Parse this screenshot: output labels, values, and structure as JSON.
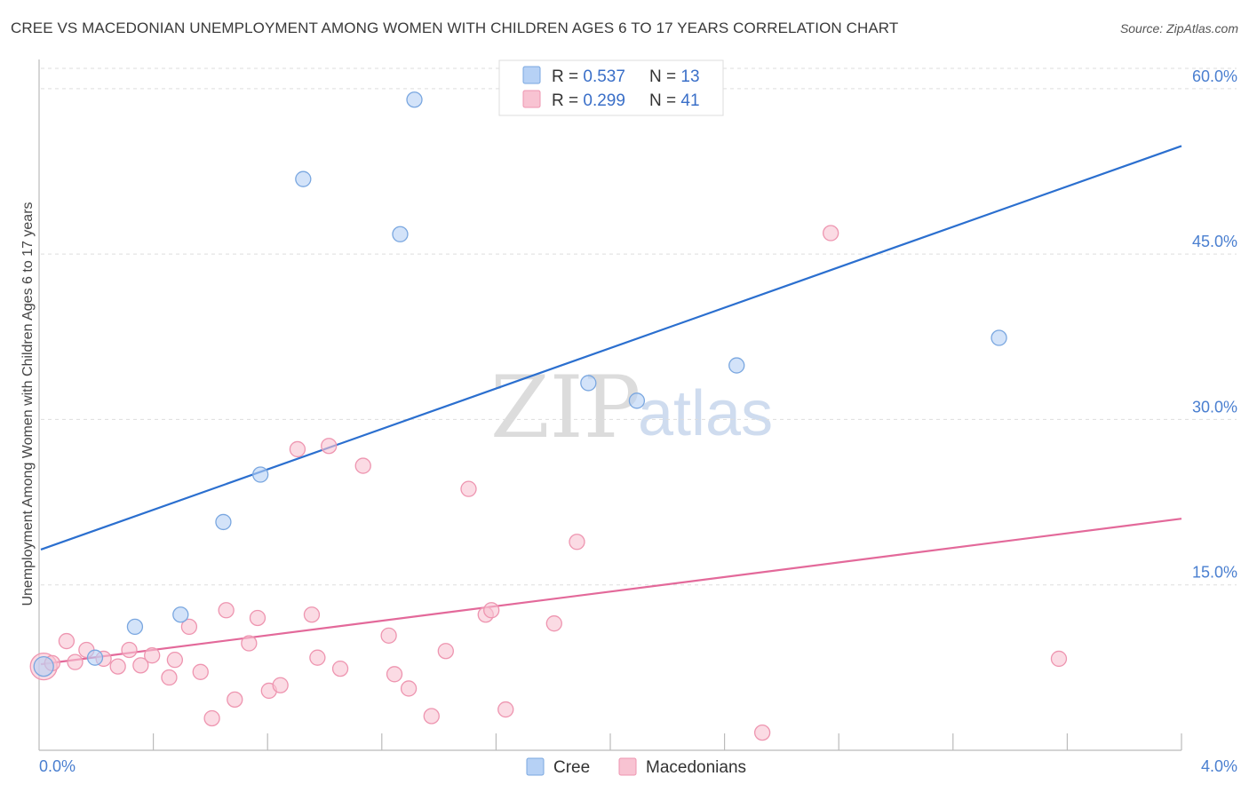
{
  "header": {
    "title": "CREE VS MACEDONIAN UNEMPLOYMENT AMONG WOMEN WITH CHILDREN AGES 6 TO 17 YEARS CORRELATION CHART",
    "source": "Source: ZipAtlas.com"
  },
  "watermark": {
    "zip": "ZIP",
    "atlas": "atlas"
  },
  "legend": {
    "cree": {
      "r_label": "R = ",
      "r_value": "0.537",
      "n_label": "N = ",
      "n_value": "13"
    },
    "macedonians": {
      "r_label": "R = ",
      "r_value": "0.299",
      "n_label": "N = ",
      "n_value": "41"
    }
  },
  "bottom_legend": {
    "cree": "Cree",
    "macedonians": "Macedonians"
  },
  "colors": {
    "cree_fill": "#b6d1f5",
    "cree_stroke": "#7aa7e0",
    "cree_line": "#2b6fcf",
    "mac_fill": "#f8c3d2",
    "mac_stroke": "#ee95b0",
    "mac_line": "#e3699a",
    "tick_text": "#4a7fd0",
    "grid": "#dddddd"
  },
  "chart_data": {
    "type": "scatter",
    "title": "CREE VS MACEDONIAN UNEMPLOYMENT AMONG WOMEN WITH CHILDREN AGES 6 TO 17 YEARS CORRELATION CHART",
    "xlabel": "",
    "ylabel": "Unemployment Among Women with Children Ages 6 to 17 years",
    "xlim": [
      0,
      4.0
    ],
    "ylim": [
      0,
      62
    ],
    "x_tick_labels": [
      "0.0%",
      "4.0%"
    ],
    "y_ticks": [
      15,
      30,
      45,
      60
    ],
    "y_tick_labels": [
      "15.0%",
      "30.0%",
      "45.0%",
      "60.0%"
    ],
    "grid": true,
    "series": [
      {
        "name": "Cree",
        "points": [
          [
            0.01,
            7.6
          ],
          [
            0.19,
            8.4
          ],
          [
            0.33,
            11.2
          ],
          [
            0.49,
            12.3
          ],
          [
            0.64,
            20.7
          ],
          [
            0.77,
            25.0
          ],
          [
            0.92,
            51.8
          ],
          [
            1.26,
            46.8
          ],
          [
            1.31,
            59.0
          ],
          [
            1.92,
            33.3
          ],
          [
            2.09,
            31.7
          ],
          [
            2.44,
            34.9
          ],
          [
            3.36,
            37.4
          ]
        ],
        "trend": {
          "x": [
            0,
            4.0
          ],
          "y": [
            18.2,
            54.8
          ]
        }
      },
      {
        "name": "Macedonians",
        "points": [
          [
            0.01,
            7.6
          ],
          [
            0.04,
            7.9
          ],
          [
            0.09,
            9.9
          ],
          [
            0.12,
            8.0
          ],
          [
            0.16,
            9.1
          ],
          [
            0.22,
            8.3
          ],
          [
            0.27,
            7.6
          ],
          [
            0.31,
            9.1
          ],
          [
            0.35,
            7.7
          ],
          [
            0.39,
            8.6
          ],
          [
            0.45,
            6.6
          ],
          [
            0.47,
            8.2
          ],
          [
            0.52,
            11.2
          ],
          [
            0.56,
            7.1
          ],
          [
            0.6,
            2.9
          ],
          [
            0.65,
            12.7
          ],
          [
            0.68,
            4.6
          ],
          [
            0.73,
            9.7
          ],
          [
            0.76,
            12.0
          ],
          [
            0.8,
            5.4
          ],
          [
            0.84,
            5.9
          ],
          [
            0.9,
            27.3
          ],
          [
            0.95,
            12.3
          ],
          [
            0.97,
            8.4
          ],
          [
            1.01,
            27.6
          ],
          [
            1.05,
            7.4
          ],
          [
            1.13,
            25.8
          ],
          [
            1.22,
            10.4
          ],
          [
            1.24,
            6.9
          ],
          [
            1.29,
            5.6
          ],
          [
            1.37,
            3.1
          ],
          [
            1.42,
            9.0
          ],
          [
            1.5,
            23.7
          ],
          [
            1.56,
            12.3
          ],
          [
            1.58,
            12.7
          ],
          [
            1.63,
            3.7
          ],
          [
            1.8,
            11.5
          ],
          [
            1.88,
            18.9
          ],
          [
            2.53,
            1.6
          ],
          [
            2.77,
            46.9
          ],
          [
            3.57,
            8.3
          ]
        ],
        "trend": {
          "x": [
            0,
            4.0
          ],
          "y": [
            7.8,
            21.0
          ]
        }
      }
    ]
  }
}
